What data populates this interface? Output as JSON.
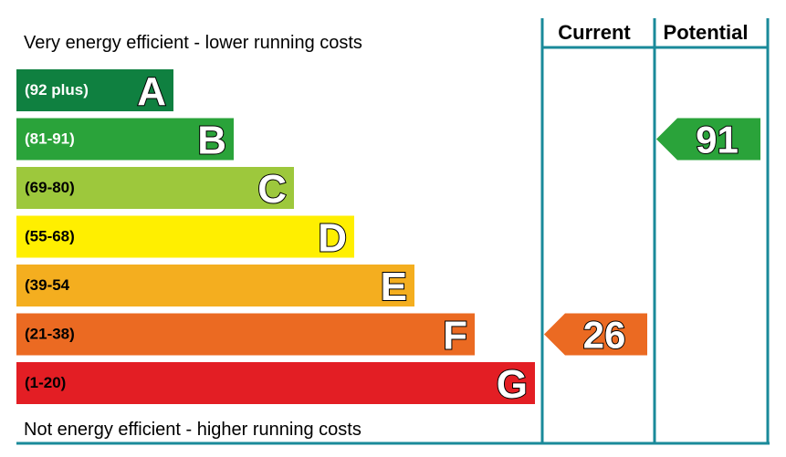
{
  "chart_data": {
    "type": "bar",
    "top_caption": "Very energy efficient - lower running costs",
    "bottom_caption": "Not energy efficient - higher running costs",
    "columns": [
      "Current",
      "Potential"
    ],
    "bands": [
      {
        "letter": "A",
        "range": "(92 plus)",
        "color": "#0f8040",
        "text_color": "#ffffff"
      },
      {
        "letter": "B",
        "range": "(81-91)",
        "color": "#2aa33a",
        "text_color": "#ffffff"
      },
      {
        "letter": "C",
        "range": "(69-80)",
        "color": "#9dc83c",
        "text_color": "#000000"
      },
      {
        "letter": "D",
        "range": "(55-68)",
        "color": "#ffef00",
        "text_color": "#000000"
      },
      {
        "letter": "E",
        "range": "(39-54",
        "color": "#f4ae1f",
        "text_color": "#000000"
      },
      {
        "letter": "F",
        "range": "(21-38)",
        "color": "#eb6a22",
        "text_color": "#000000"
      },
      {
        "letter": "G",
        "range": "(1-20)",
        "color": "#e31e24",
        "text_color": "#000000"
      }
    ],
    "ratings": {
      "current": {
        "value": 26,
        "band": "F",
        "color": "#eb6a22"
      },
      "potential": {
        "value": 91,
        "band": "B",
        "color": "#2aa33a"
      }
    },
    "rule_color": "#1a8a9a"
  }
}
